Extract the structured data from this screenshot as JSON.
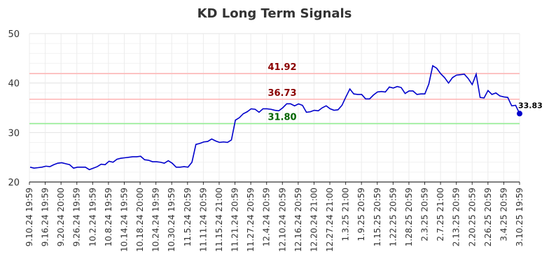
{
  "chart_data": {
    "type": "line",
    "title": "KD Long Term Signals",
    "xlabel": "",
    "ylabel": "",
    "ylim": [
      20,
      50
    ],
    "yticks": [
      "20",
      "30",
      "40",
      "50"
    ],
    "grid": true,
    "colors": {
      "line": "#0000cc",
      "ref_upper": "#8b0000",
      "ref_lower": "#006400",
      "upper_line": "#ffb3b3",
      "lower_line": "#90ee90"
    },
    "x_tick_labels": [
      "9.10.24 19:59",
      "9.16.24 19:59",
      "9.20.24 20:00",
      "9.26.24 19:59",
      "10.2.24 19:59",
      "10.8.24 19:59",
      "10.14.24 19:59",
      "10.18.24 20:00",
      "10.24.24 19:59",
      "10.30.24 19:59",
      "11.5.24 20:59",
      "11.11.24 20:59",
      "11.15.24 21:00",
      "11.21.24 20:59",
      "11.27.24 20:59",
      "12.4.24 20:59",
      "12.10.24 20:59",
      "12.16.24 20:59",
      "12.20.24 21:00",
      "12.27.24 21:00",
      "1.3.25 21:00",
      "1.9.25 20:59",
      "1.15.25 20:59",
      "1.22.25 20:59",
      "1.28.25 20:59",
      "2.3.25 20:59",
      "2.7.25 21:00",
      "2.13.25 20:59",
      "2.20.25 20:59",
      "2.26.25 20:59",
      "3.4.25 20:59",
      "3.10.25 19:59"
    ],
    "reference_lines": [
      {
        "value": 41.92,
        "label": "41.92",
        "kind": "upper"
      },
      {
        "value": 36.73,
        "label": "36.73",
        "kind": "upper"
      },
      {
        "value": 31.8,
        "label": "31.80",
        "kind": "lower"
      }
    ],
    "last_value_label": "33.83",
    "series": [
      {
        "values": [
          23.0,
          22.8,
          22.9,
          23.0,
          23.2,
          23.1,
          23.5,
          23.8,
          23.9,
          23.7,
          23.5,
          22.8,
          23.0,
          23.0,
          23.0,
          22.5,
          22.8,
          23.1,
          23.6,
          23.5,
          24.2,
          24.0,
          24.6,
          24.8,
          24.9,
          25.0,
          25.1,
          25.1,
          25.2,
          24.5,
          24.4,
          24.1,
          24.1,
          24.0,
          23.8,
          24.3,
          23.8,
          23.0,
          23.0,
          23.1,
          23.0,
          24.0,
          27.6,
          27.8,
          28.1,
          28.2,
          28.7,
          28.3,
          28.0,
          28.1,
          28.0,
          28.5,
          32.5,
          33.0,
          33.8,
          34.2,
          34.8,
          34.7,
          34.1,
          34.8,
          34.8,
          34.7,
          34.5,
          34.4,
          35.0,
          35.8,
          35.8,
          35.4,
          35.8,
          35.5,
          34.1,
          34.2,
          34.5,
          34.4,
          35.0,
          35.4,
          34.8,
          34.5,
          34.6,
          35.5,
          37.2,
          38.8,
          37.8,
          37.7,
          37.7,
          36.8,
          36.8,
          37.6,
          38.2,
          38.3,
          38.2,
          39.2,
          39.0,
          39.3,
          39.1,
          37.9,
          38.4,
          38.4,
          37.7,
          37.8,
          37.8,
          39.8,
          43.5,
          43.0,
          41.9,
          41.1,
          40.0,
          41.1,
          41.6,
          41.7,
          41.8,
          40.9,
          39.7,
          41.8,
          37.1,
          37.0,
          38.5,
          37.7,
          38.0,
          37.4,
          37.2,
          37.1,
          35.4,
          35.5,
          33.83
        ]
      }
    ]
  }
}
